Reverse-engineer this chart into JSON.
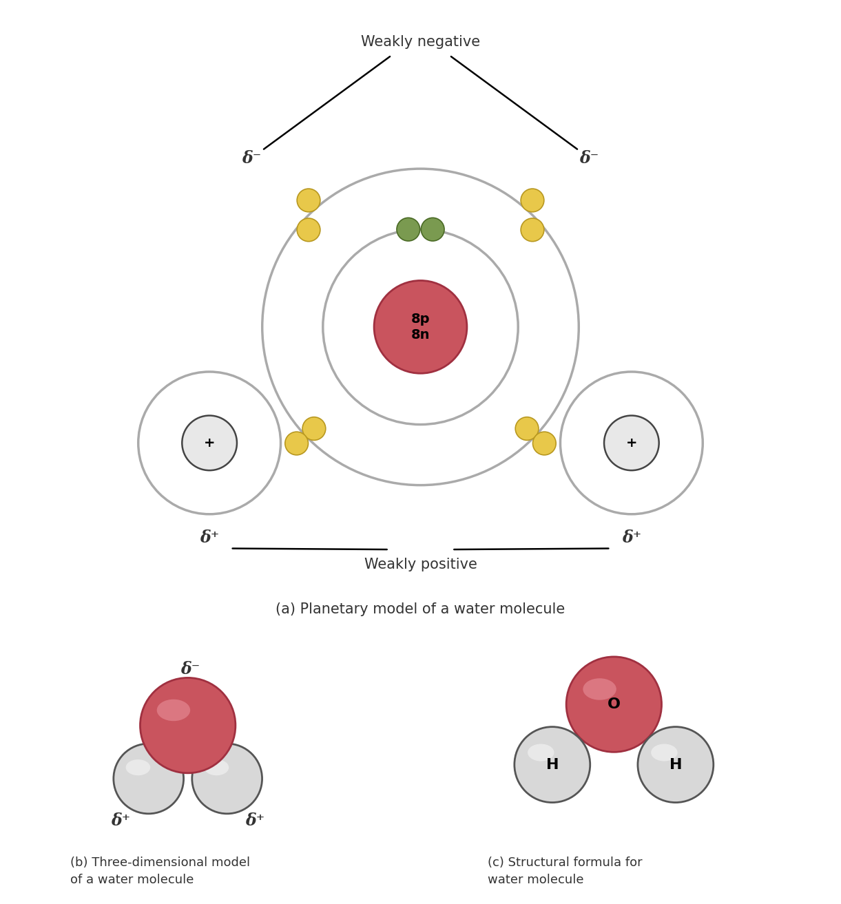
{
  "bg_color": "#ffffff",
  "oxygen_nucleus_color": "#c9545e",
  "oxygen_nucleus_edge": "#a03040",
  "hydrogen_nucleus_color": "#e8e8e8",
  "hydrogen_nucleus_edge": "#444444",
  "electron_yellow": "#e8c84a",
  "electron_yellow_edge": "#b89820",
  "electron_green": "#7a9a50",
  "electron_green_edge": "#4a6a25",
  "orbit_color": "#aaaaaa",
  "orbit_lw": 2.5,
  "title_a": "(a) Planetary model of a water molecule",
  "title_b": "(b) Three-dimensional model\nof a water molecule",
  "title_c": "(c) Structural formula for\nwater molecule",
  "label_weakly_negative": "Weakly negative",
  "label_weakly_positive": "Weakly positive",
  "label_8p8n": "8p\n8n",
  "label_plus": "+",
  "label_O": "O",
  "label_H": "H",
  "delta_minus": "δ⁻",
  "delta_plus": "δ⁺",
  "text_color": "#333333",
  "O_3d_color": "#c9545e",
  "O_3d_highlight": "#e08090",
  "H_3d_color": "#e0e0e0",
  "H_3d_edge": "#555555"
}
